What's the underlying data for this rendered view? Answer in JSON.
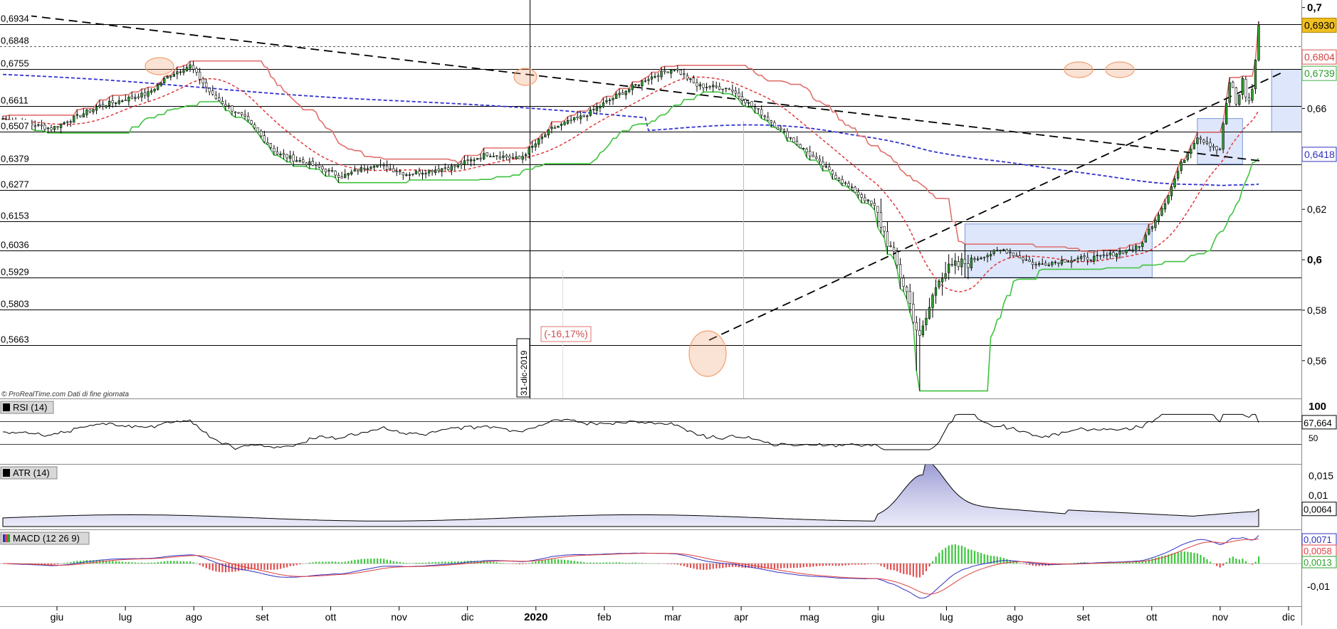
{
  "chart_data": {
    "type": "candlestick",
    "source_note": "© ProRealTime.com Dati di fine giornata",
    "colors": {
      "background": "#ffffff",
      "up_candle": "#2ca02c",
      "down_candle": "#ffffff",
      "support_trail": "#3fc23f",
      "resistance_trail": "#e0706c",
      "ma_short": "#e0373a",
      "ma_long": "#3232d0",
      "box_fill": "#dde6fa",
      "box_stroke": "#7a9ad8",
      "highlight_ellipse": "#f0a070",
      "last_price_bg": "#f0c020"
    },
    "price_axis": {
      "ylim": [
        0.545,
        0.703
      ],
      "ticks": [
        "0,7",
        "0,66",
        "0,62",
        "0,6",
        "0,58",
        "0,56"
      ],
      "tick_values": [
        0.7,
        0.66,
        0.62,
        0.6,
        0.58,
        0.56
      ],
      "bold_ticks": [
        "0,7",
        "0,6"
      ],
      "right_labels": [
        {
          "text": "0,6930",
          "value": 0.693,
          "style": "last"
        },
        {
          "text": "0,6804",
          "value": 0.6804,
          "style": "red"
        },
        {
          "text": "0,6739",
          "value": 0.6739,
          "style": "green"
        },
        {
          "text": "0,6418",
          "value": 0.6418,
          "style": "blue"
        }
      ]
    },
    "levels": [
      {
        "label": "0,6934",
        "value": 0.6934
      },
      {
        "label": "0,6848",
        "value": 0.6848,
        "dashed": true
      },
      {
        "label": "0,6755",
        "value": 0.6755
      },
      {
        "label": "0,6611",
        "value": 0.6611
      },
      {
        "label": "0,6507",
        "value": 0.6507
      },
      {
        "label": "0,6379",
        "value": 0.6379
      },
      {
        "label": "0,6277",
        "value": 0.6277
      },
      {
        "label": "0,6153",
        "value": 0.6153
      },
      {
        "label": "0,6036",
        "value": 0.6036
      },
      {
        "label": "0,5929",
        "value": 0.5929
      },
      {
        "label": "0,5803",
        "value": 0.5803
      },
      {
        "label": "0,5663",
        "value": 0.5663
      }
    ],
    "x_axis": {
      "months": [
        "giu",
        "lug",
        "ago",
        "set",
        "ott",
        "nov",
        "dic",
        "2020",
        "feb",
        "mar",
        "apr",
        "mag",
        "giu",
        "lug",
        "ago",
        "set",
        "ott",
        "nov",
        "dic"
      ],
      "bold_months": [
        "2020"
      ],
      "marker_label": "31-dic-2019",
      "n_sessions": 390
    },
    "annotations": {
      "drawdown": "(-16,17%)"
    },
    "price_path": {
      "anchors": [
        [
          0,
          0.656
        ],
        [
          15,
          0.652
        ],
        [
          30,
          0.661
        ],
        [
          45,
          0.666
        ],
        [
          52,
          0.6735
        ],
        [
          58,
          0.677
        ],
        [
          65,
          0.665
        ],
        [
          75,
          0.656
        ],
        [
          85,
          0.642
        ],
        [
          95,
          0.638
        ],
        [
          105,
          0.633
        ],
        [
          115,
          0.638
        ],
        [
          125,
          0.634
        ],
        [
          140,
          0.637
        ],
        [
          150,
          0.642
        ],
        [
          160,
          0.64
        ],
        [
          170,
          0.652
        ],
        [
          180,
          0.657
        ],
        [
          190,
          0.665
        ],
        [
          200,
          0.672
        ],
        [
          208,
          0.676
        ],
        [
          215,
          0.669
        ],
        [
          225,
          0.668
        ],
        [
          235,
          0.658
        ],
        [
          245,
          0.647
        ],
        [
          258,
          0.633
        ],
        [
          270,
          0.621
        ],
        [
          280,
          0.587
        ],
        [
          284,
          0.568
        ],
        [
          290,
          0.594
        ],
        [
          300,
          0.6
        ],
        [
          310,
          0.604
        ],
        [
          320,
          0.598
        ],
        [
          330,
          0.6
        ],
        [
          340,
          0.601
        ],
        [
          352,
          0.605
        ],
        [
          360,
          0.623
        ],
        [
          365,
          0.638
        ],
        [
          370,
          0.649
        ],
        [
          377,
          0.643
        ]
      ],
      "tail_anchors": [
        [
          0,
          0.643
        ],
        [
          8,
          0.652
        ],
        [
          16,
          0.656
        ],
        [
          24,
          0.662
        ],
        [
          32,
          0.665
        ],
        [
          40,
          0.674
        ],
        [
          48,
          0.668
        ],
        [
          56,
          0.66
        ],
        [
          64,
          0.664
        ],
        [
          72,
          0.665
        ],
        [
          80,
          0.67
        ],
        [
          88,
          0.674
        ],
        [
          96,
          0.665
        ],
        [
          104,
          0.662
        ],
        [
          112,
          0.663
        ],
        [
          120,
          0.668
        ],
        [
          128,
          0.673
        ],
        [
          136,
          0.685
        ],
        [
          140,
          0.692
        ],
        [
          144,
          0.693
        ]
      ]
    },
    "rsi": {
      "label": "RSI (14)",
      "axis_ticks": [
        "100",
        "50"
      ],
      "last": "67,664",
      "last_value": 67.664
    },
    "atr": {
      "label": "ATR (14)",
      "axis_ticks": [
        "0,015",
        "0,01"
      ],
      "last": "0,0064",
      "last_value": 0.0064
    },
    "macd": {
      "label": "MACD (12 26 9)",
      "axis_ticks": [
        "-0,01"
      ],
      "values": [
        "0,0071",
        "0,0058",
        "0,0013"
      ],
      "value_colors": [
        "#3030c0",
        "#e04040",
        "#2ca02c"
      ]
    }
  }
}
